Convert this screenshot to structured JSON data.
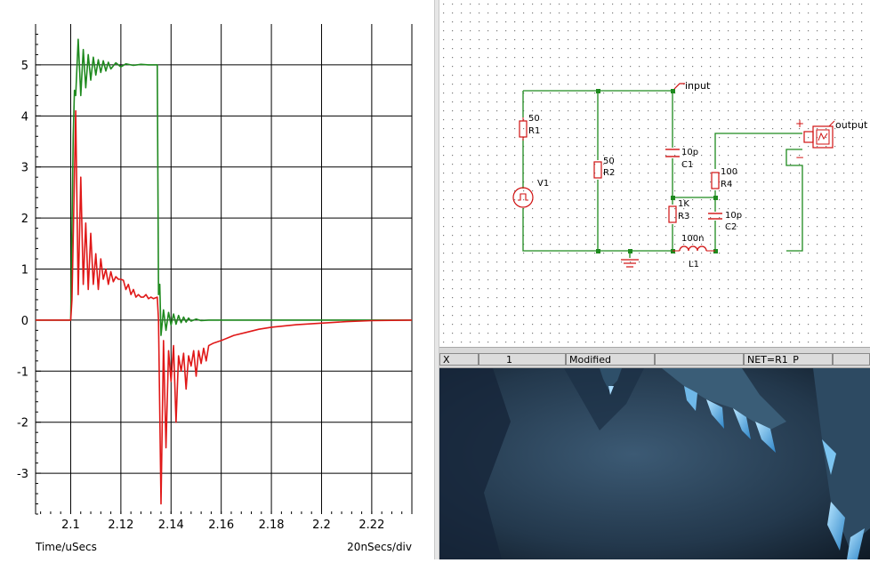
{
  "waveform_viewer": {
    "x_axis_label": "Time/uSecs",
    "scale_label": "20nSecs/div",
    "colors": {
      "trace_green": "#1f8a1f",
      "trace_red": "#e01818",
      "grid": "#000000"
    }
  },
  "chart_data": {
    "type": "line",
    "xlabel": "Time/uSecs",
    "ylabel": "",
    "xlim": [
      2.086,
      2.236
    ],
    "ylim": [
      -3.8,
      5.8
    ],
    "x_ticks": [
      "2.1",
      "2.12",
      "2.14",
      "2.16",
      "2.18",
      "2.2",
      "2.22"
    ],
    "y_ticks": [
      "5",
      "4",
      "3",
      "2",
      "1",
      "0",
      "-1",
      "-2",
      "-3"
    ],
    "grid": true,
    "series": [
      {
        "color": "#1f8a1f",
        "x": [
          2.086,
          2.1,
          2.1005,
          2.101,
          2.1015,
          2.102,
          2.103,
          2.104,
          2.105,
          2.106,
          2.107,
          2.108,
          2.109,
          2.11,
          2.111,
          2.112,
          2.113,
          2.114,
          2.115,
          2.116,
          2.118,
          2.12,
          2.122,
          2.125,
          2.128,
          2.131,
          2.1345,
          2.135,
          2.1355,
          2.136,
          2.137,
          2.138,
          2.139,
          2.14,
          2.141,
          2.142,
          2.143,
          2.144,
          2.145,
          2.146,
          2.147,
          2.148,
          2.15,
          2.152,
          2.155,
          2.16,
          2.17,
          2.19,
          2.21,
          2.236
        ],
        "y": [
          0,
          0,
          1.8,
          3.6,
          4.5,
          4.4,
          5.5,
          4.4,
          5.3,
          4.55,
          5.2,
          4.7,
          5.15,
          4.8,
          5.1,
          4.85,
          5.08,
          4.88,
          5.05,
          4.92,
          5.04,
          4.96,
          5.02,
          4.99,
          5.01,
          5.0,
          5.0,
          0.5,
          0.7,
          -0.3,
          0.2,
          -0.2,
          0.15,
          -0.1,
          0.12,
          -0.08,
          0.09,
          -0.05,
          0.06,
          -0.04,
          0.04,
          -0.02,
          0.02,
          -0.01,
          0.0,
          0.0,
          0.0,
          0.0,
          0.0,
          0.0
        ]
      },
      {
        "color": "#e01818",
        "x": [
          2.086,
          2.1,
          2.1005,
          2.101,
          2.102,
          2.103,
          2.104,
          2.105,
          2.106,
          2.107,
          2.108,
          2.109,
          2.11,
          2.111,
          2.112,
          2.113,
          2.114,
          2.115,
          2.116,
          2.117,
          2.118,
          2.119,
          2.12,
          2.121,
          2.122,
          2.123,
          2.124,
          2.125,
          2.126,
          2.127,
          2.128,
          2.129,
          2.13,
          2.131,
          2.132,
          2.133,
          2.1345,
          2.135,
          2.136,
          2.137,
          2.138,
          2.139,
          2.14,
          2.141,
          2.142,
          2.143,
          2.144,
          2.145,
          2.146,
          2.147,
          2.148,
          2.149,
          2.15,
          2.151,
          2.152,
          2.153,
          2.154,
          2.155,
          2.157,
          2.16,
          2.165,
          2.17,
          2.175,
          2.18,
          2.19,
          2.2,
          2.21,
          2.22,
          2.236
        ],
        "y": [
          0,
          0,
          0.4,
          1.6,
          4.1,
          0.5,
          2.8,
          0.7,
          1.9,
          0.6,
          1.7,
          0.7,
          1.3,
          0.6,
          1.2,
          0.8,
          1.0,
          0.7,
          0.95,
          0.75,
          0.85,
          0.8,
          0.8,
          0.78,
          0.6,
          0.7,
          0.5,
          0.6,
          0.45,
          0.5,
          0.45,
          0.45,
          0.5,
          0.42,
          0.45,
          0.42,
          0.45,
          0.0,
          -3.6,
          -0.4,
          -2.5,
          -0.6,
          -1.2,
          -0.5,
          -2.0,
          -0.7,
          -1.0,
          -0.65,
          -1.35,
          -0.7,
          -0.9,
          -0.6,
          -1.1,
          -0.6,
          -0.85,
          -0.55,
          -0.8,
          -0.5,
          -0.45,
          -0.4,
          -0.3,
          -0.24,
          -0.18,
          -0.14,
          -0.09,
          -0.06,
          -0.03,
          -0.01,
          0.0
        ]
      }
    ]
  },
  "schematic": {
    "components": {
      "R1": {
        "ref": "R1",
        "value": "50"
      },
      "R2": {
        "ref": "R2",
        "value": "50"
      },
      "R3": {
        "ref": "R3",
        "value": "1K"
      },
      "R4": {
        "ref": "R4",
        "value": "100"
      },
      "C1": {
        "ref": "C1",
        "value": "10p"
      },
      "C2": {
        "ref": "C2",
        "value": "10p"
      },
      "L1": {
        "ref": "L1",
        "value": "100n"
      },
      "V1": {
        "ref": "V1"
      }
    },
    "net_labels": {
      "input": "input",
      "output": "output"
    },
    "probe_signs": {
      "plus": "+",
      "minus": "−"
    }
  },
  "statusbar": {
    "x_label": "X",
    "x_value": "1",
    "modified": "Modified",
    "net": "NET=R1_P"
  }
}
